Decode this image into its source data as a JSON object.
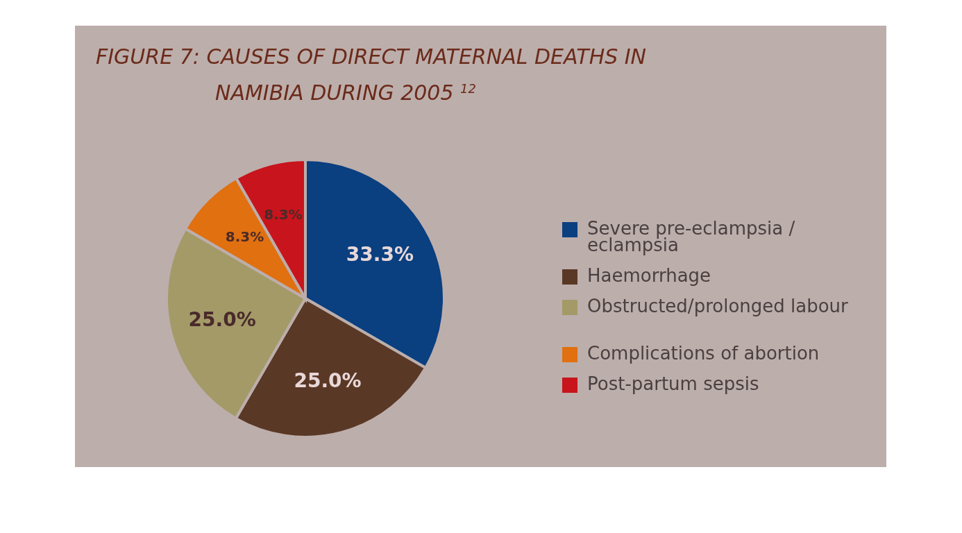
{
  "chart_data": {
    "type": "pie",
    "title": "FIGURE 7: CAUSES OF DIRECT MATERNAL DEATHS IN NAMIBIA DURING 2005 $^{12}$",
    "categories": [
      "Severe pre-eclampsia / eclampsia",
      "Haemorrhage",
      "Obstructed/prolonged labour",
      "Complications of abortion",
      "Post-partum sepsis"
    ],
    "values": [
      33.3,
      25.0,
      25.0,
      8.3,
      8.3
    ],
    "colors": [
      "#0a3f80",
      "#5a3826",
      "#a39a68",
      "#e07010",
      "#c8141c"
    ],
    "value_labels": [
      "33.3%",
      "25.0%",
      "25.0%",
      "8.3%",
      "8.3%"
    ],
    "legend": "right"
  }
}
